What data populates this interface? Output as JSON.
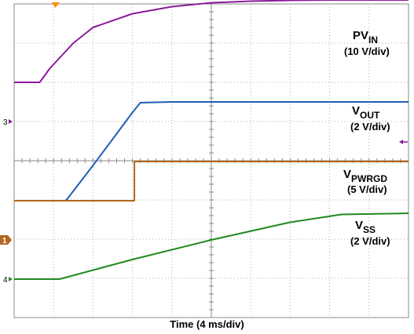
{
  "chart_data": {
    "type": "line",
    "xlabel": "Time (4 ms/div)",
    "grid": true,
    "x_divisions": 10,
    "y_divisions": 8,
    "trigger_marker_color": "#ff8c00",
    "series": [
      {
        "name": "PV_IN",
        "label_main": "PV",
        "label_sub": "IN",
        "scale": "(10 V/div)",
        "channel": "3",
        "color": "#8b1a9b",
        "marker_color": "#8b1a9b",
        "ref_div": 1.0,
        "marker_arrow": false,
        "points": [
          [
            0,
            1.0
          ],
          [
            0.65,
            1.0
          ],
          [
            0.9,
            1.35
          ],
          [
            1.5,
            2.0
          ],
          [
            2.0,
            2.4
          ],
          [
            3.0,
            2.75
          ],
          [
            4.0,
            2.93
          ],
          [
            5.0,
            3.03
          ],
          [
            6.0,
            3.07
          ],
          [
            7.0,
            3.09
          ],
          [
            8.0,
            3.1
          ],
          [
            9.0,
            3.1
          ],
          [
            10.0,
            3.1
          ]
        ]
      },
      {
        "name": "V_OUT",
        "label_main": "V",
        "label_sub": "OUT",
        "scale": "(2 V/div)",
        "channel": "",
        "color": "#1f5fb5",
        "marker_color": "#8b1a9b",
        "ref_div": 1.5,
        "marker_arrow": true,
        "points": [
          [
            0,
            0
          ],
          [
            1.3,
            0
          ],
          [
            1.35,
            0.05
          ],
          [
            2.0,
            0.9
          ],
          [
            3.0,
            2.25
          ],
          [
            3.2,
            2.5
          ],
          [
            4.0,
            2.52
          ],
          [
            10.0,
            2.52
          ]
        ]
      },
      {
        "name": "V_PWRGD",
        "label_main": "V",
        "label_sub": "PWRGD",
        "scale": "(5 V/div)",
        "channel": "1",
        "color": "#b5651d",
        "marker_color": "#b5651d",
        "ref_div": 0,
        "marker_arrow": false,
        "points": [
          [
            0,
            1.0
          ],
          [
            3.05,
            1.0
          ],
          [
            3.05,
            2.0
          ],
          [
            10.0,
            2.0
          ]
        ]
      },
      {
        "name": "V_SS",
        "label_main": "V",
        "label_sub": "SS",
        "scale": "(2 V/div)",
        "channel": "4",
        "color": "#1f8a1f",
        "marker_color": "#1f8a1f",
        "ref_div": 0,
        "marker_arrow": false,
        "points": [
          [
            0,
            0
          ],
          [
            1.15,
            0
          ],
          [
            3.0,
            0.5
          ],
          [
            5.0,
            1.0
          ],
          [
            7.0,
            1.45
          ],
          [
            8.3,
            1.65
          ],
          [
            10.0,
            1.68
          ]
        ]
      }
    ]
  }
}
